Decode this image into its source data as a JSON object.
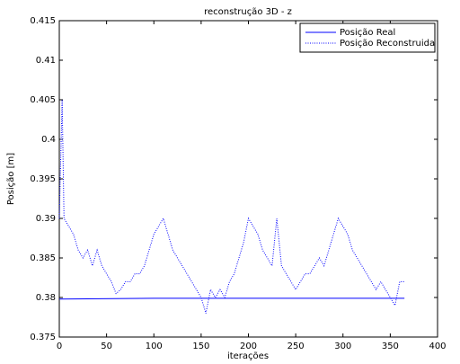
{
  "chart_data": {
    "type": "line",
    "title": "reconstrução 3D - z",
    "xlabel": "iterações",
    "ylabel": "Posição [m]",
    "xlim": [
      0,
      400
    ],
    "xticks": [
      0,
      50,
      100,
      150,
      200,
      250,
      300,
      350,
      400
    ],
    "ylim": [
      0.375,
      0.415
    ],
    "yticks": [
      0.375,
      0.38,
      0.385,
      0.39,
      0.395,
      0.4,
      0.405,
      0.41,
      0.415
    ],
    "legend": "northeast",
    "series": [
      {
        "name": "Posição Real",
        "color": "#0000ff",
        "style": "solid",
        "x": [
          0,
          100,
          200,
          300,
          365
        ],
        "values": [
          0.3798,
          0.3799,
          0.3799,
          0.3799,
          0.3799
        ]
      },
      {
        "name": "Posição Reconstruida",
        "color": "#0000ff",
        "style": "dotted",
        "x": [
          0,
          3,
          5,
          10,
          15,
          20,
          25,
          30,
          35,
          40,
          45,
          50,
          55,
          60,
          65,
          70,
          75,
          80,
          85,
          90,
          95,
          100,
          105,
          110,
          115,
          120,
          125,
          130,
          135,
          140,
          145,
          150,
          155,
          160,
          165,
          170,
          175,
          180,
          185,
          190,
          195,
          200,
          205,
          210,
          215,
          220,
          225,
          230,
          235,
          240,
          245,
          250,
          255,
          260,
          265,
          270,
          275,
          280,
          285,
          290,
          295,
          300,
          305,
          310,
          315,
          320,
          325,
          330,
          335,
          340,
          345,
          350,
          355,
          360,
          365
        ],
        "values": [
          0.39,
          0.405,
          0.39,
          0.389,
          0.388,
          0.386,
          0.385,
          0.386,
          0.384,
          0.386,
          0.384,
          0.383,
          0.382,
          0.3805,
          0.381,
          0.382,
          0.382,
          0.383,
          0.383,
          0.384,
          0.386,
          0.388,
          0.389,
          0.39,
          0.388,
          0.386,
          0.385,
          0.384,
          0.383,
          0.382,
          0.381,
          0.38,
          0.378,
          0.381,
          0.38,
          0.381,
          0.38,
          0.382,
          0.383,
          0.385,
          0.387,
          0.39,
          0.389,
          0.388,
          0.386,
          0.385,
          0.384,
          0.39,
          0.384,
          0.383,
          0.382,
          0.381,
          0.382,
          0.383,
          0.383,
          0.384,
          0.385,
          0.384,
          0.386,
          0.388,
          0.39,
          0.389,
          0.388,
          0.386,
          0.385,
          0.384,
          0.383,
          0.382,
          0.381,
          0.382,
          0.381,
          0.38,
          0.379,
          0.382,
          0.382
        ]
      }
    ]
  }
}
